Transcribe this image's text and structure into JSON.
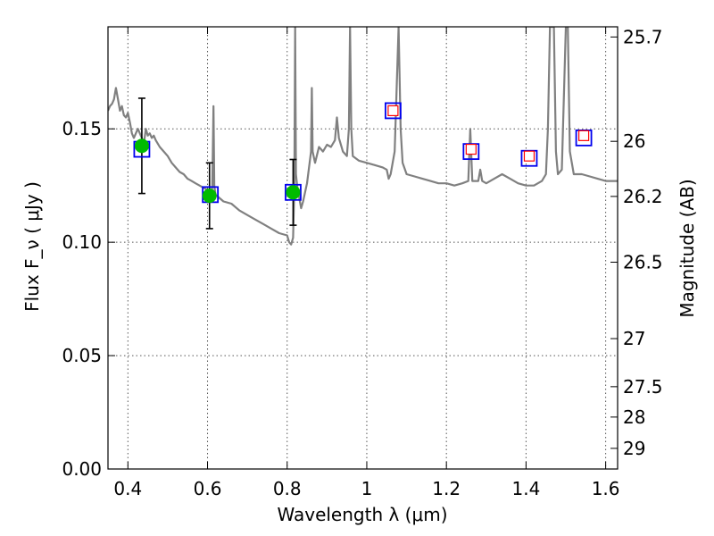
{
  "chart_data": {
    "type": "scatter",
    "xlabel": "Wavelength  λ (μm)",
    "ylabel": "Flux  F_ν  ( μJy )",
    "ylabel_right": "Magnitude (AB)",
    "xlim": [
      0.35,
      1.63
    ],
    "ylim": [
      0.0,
      0.195
    ],
    "grid": true,
    "x_ticks": [
      0.4,
      0.6,
      0.8,
      1.0,
      1.2,
      1.4,
      1.6
    ],
    "x_tick_labels": [
      "0.4",
      "0.6",
      "0.8",
      "1",
      "1.2",
      "1.4",
      "1.6"
    ],
    "y_ticks": [
      0.0,
      0.05,
      0.1,
      0.15
    ],
    "y_tick_labels": [
      "0.00",
      "0.05",
      "0.10",
      "0.15"
    ],
    "right_ticks": [
      {
        "flux": 0.1905,
        "label": "25.7"
      },
      {
        "flux": 0.1445,
        "label": "26"
      },
      {
        "flux": 0.1202,
        "label": "26.2"
      },
      {
        "flux": 0.0912,
        "label": "26.5"
      },
      {
        "flux": 0.0575,
        "label": "27"
      },
      {
        "flux": 0.0363,
        "label": "27.5"
      },
      {
        "flux": 0.0229,
        "label": "28"
      },
      {
        "flux": 0.0091,
        "label": "29"
      }
    ],
    "colors": {
      "spectrum": "#808080",
      "detection": "#00bb00",
      "model_box": "#0000ee",
      "upper_limit": "#ff0000",
      "error_bar": "#000000",
      "grid": "#555555"
    },
    "series": [
      {
        "style": "line",
        "points": [
          [
            0.35,
            0.158
          ],
          [
            0.355,
            0.16
          ],
          [
            0.36,
            0.161
          ],
          [
            0.365,
            0.163
          ],
          [
            0.37,
            0.168
          ],
          [
            0.375,
            0.163
          ],
          [
            0.38,
            0.158
          ],
          [
            0.385,
            0.16
          ],
          [
            0.39,
            0.156
          ],
          [
            0.395,
            0.155
          ],
          [
            0.4,
            0.157
          ],
          [
            0.405,
            0.153
          ],
          [
            0.41,
            0.148
          ],
          [
            0.415,
            0.146
          ],
          [
            0.42,
            0.148
          ],
          [
            0.425,
            0.15
          ],
          [
            0.43,
            0.148
          ],
          [
            0.435,
            0.146
          ],
          [
            0.44,
            0.143
          ],
          [
            0.445,
            0.15
          ],
          [
            0.45,
            0.147
          ],
          [
            0.455,
            0.148
          ],
          [
            0.46,
            0.146
          ],
          [
            0.465,
            0.147
          ],
          [
            0.47,
            0.145
          ],
          [
            0.48,
            0.142
          ],
          [
            0.49,
            0.14
          ],
          [
            0.5,
            0.138
          ],
          [
            0.51,
            0.135
          ],
          [
            0.52,
            0.133
          ],
          [
            0.53,
            0.131
          ],
          [
            0.54,
            0.13
          ],
          [
            0.55,
            0.128
          ],
          [
            0.56,
            0.127
          ],
          [
            0.57,
            0.126
          ],
          [
            0.58,
            0.125
          ],
          [
            0.59,
            0.124
          ],
          [
            0.6,
            0.123
          ],
          [
            0.605,
            0.122
          ],
          [
            0.61,
            0.121
          ],
          [
            0.612,
            0.125
          ],
          [
            0.615,
            0.16
          ],
          [
            0.617,
            0.125
          ],
          [
            0.62,
            0.121
          ],
          [
            0.64,
            0.118
          ],
          [
            0.66,
            0.117
          ],
          [
            0.68,
            0.114
          ],
          [
            0.7,
            0.112
          ],
          [
            0.72,
            0.11
          ],
          [
            0.74,
            0.108
          ],
          [
            0.76,
            0.106
          ],
          [
            0.78,
            0.104
          ],
          [
            0.8,
            0.103
          ],
          [
            0.805,
            0.1
          ],
          [
            0.81,
            0.099
          ],
          [
            0.815,
            0.102
          ],
          [
            0.818,
            0.125
          ],
          [
            0.82,
            0.195
          ],
          [
            0.822,
            0.13
          ],
          [
            0.825,
            0.125
          ],
          [
            0.83,
            0.12
          ],
          [
            0.835,
            0.115
          ],
          [
            0.84,
            0.118
          ],
          [
            0.845,
            0.122
          ],
          [
            0.85,
            0.126
          ],
          [
            0.86,
            0.14
          ],
          [
            0.862,
            0.168
          ],
          [
            0.864,
            0.14
          ],
          [
            0.87,
            0.135
          ],
          [
            0.88,
            0.142
          ],
          [
            0.89,
            0.14
          ],
          [
            0.9,
            0.143
          ],
          [
            0.91,
            0.142
          ],
          [
            0.92,
            0.145
          ],
          [
            0.925,
            0.155
          ],
          [
            0.93,
            0.146
          ],
          [
            0.94,
            0.14
          ],
          [
            0.95,
            0.138
          ],
          [
            0.955,
            0.15
          ],
          [
            0.958,
            0.195
          ],
          [
            0.961,
            0.15
          ],
          [
            0.965,
            0.138
          ],
          [
            0.98,
            0.136
          ],
          [
            1.0,
            0.135
          ],
          [
            1.02,
            0.134
          ],
          [
            1.04,
            0.133
          ],
          [
            1.05,
            0.132
          ],
          [
            1.055,
            0.128
          ],
          [
            1.06,
            0.13
          ],
          [
            1.07,
            0.14
          ],
          [
            1.08,
            0.195
          ],
          [
            1.085,
            0.15
          ],
          [
            1.09,
            0.135
          ],
          [
            1.1,
            0.13
          ],
          [
            1.12,
            0.129
          ],
          [
            1.14,
            0.128
          ],
          [
            1.16,
            0.127
          ],
          [
            1.18,
            0.126
          ],
          [
            1.2,
            0.126
          ],
          [
            1.22,
            0.125
          ],
          [
            1.24,
            0.126
          ],
          [
            1.255,
            0.127
          ],
          [
            1.26,
            0.15
          ],
          [
            1.265,
            0.127
          ],
          [
            1.28,
            0.127
          ],
          [
            1.285,
            0.132
          ],
          [
            1.29,
            0.127
          ],
          [
            1.3,
            0.126
          ],
          [
            1.32,
            0.128
          ],
          [
            1.34,
            0.13
          ],
          [
            1.36,
            0.128
          ],
          [
            1.38,
            0.126
          ],
          [
            1.4,
            0.125
          ],
          [
            1.42,
            0.125
          ],
          [
            1.44,
            0.127
          ],
          [
            1.45,
            0.13
          ],
          [
            1.455,
            0.15
          ],
          [
            1.46,
            0.195
          ],
          [
            1.47,
            0.195
          ],
          [
            1.475,
            0.14
          ],
          [
            1.48,
            0.13
          ],
          [
            1.49,
            0.132
          ],
          [
            1.5,
            0.195
          ],
          [
            1.505,
            0.195
          ],
          [
            1.51,
            0.14
          ],
          [
            1.52,
            0.13
          ],
          [
            1.54,
            0.13
          ],
          [
            1.56,
            0.129
          ],
          [
            1.58,
            0.128
          ],
          [
            1.6,
            0.127
          ],
          [
            1.62,
            0.127
          ],
          [
            1.63,
            0.127
          ]
        ]
      },
      {
        "style": "points_with_error",
        "points": [
          {
            "x": 0.435,
            "y": 0.1425,
            "yerr": 0.021
          },
          {
            "x": 0.605,
            "y": 0.1205,
            "yerr": 0.0145
          },
          {
            "x": 0.815,
            "y": 0.122,
            "yerr": 0.0145
          }
        ]
      },
      {
        "style": "model_boxes",
        "points": [
          {
            "x": 0.435,
            "y": 0.141
          },
          {
            "x": 0.607,
            "y": 0.121
          },
          {
            "x": 0.815,
            "y": 0.122
          },
          {
            "x": 1.066,
            "y": 0.158
          },
          {
            "x": 1.262,
            "y": 0.14
          },
          {
            "x": 1.408,
            "y": 0.137
          },
          {
            "x": 1.545,
            "y": 0.146
          }
        ]
      },
      {
        "style": "upper_limit_squares",
        "points": [
          {
            "x": 1.066,
            "y": 0.158
          },
          {
            "x": 1.262,
            "y": 0.141
          },
          {
            "x": 1.408,
            "y": 0.138
          },
          {
            "x": 1.545,
            "y": 0.147
          }
        ]
      }
    ]
  }
}
